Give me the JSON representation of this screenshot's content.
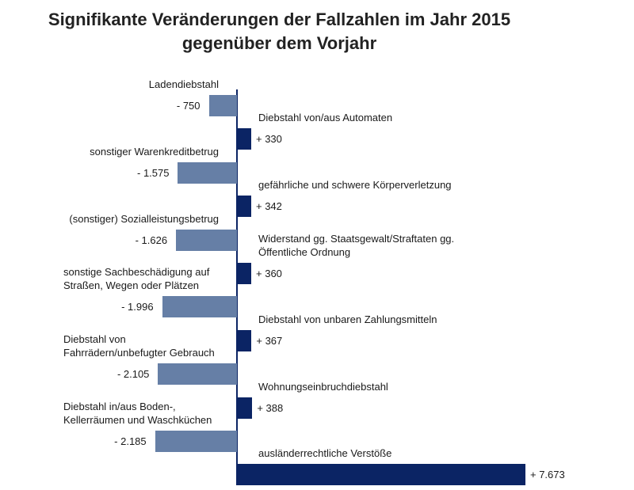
{
  "chart_data": {
    "type": "bar",
    "orientation": "horizontal",
    "title": [
      "Signifikante Veränderungen der Fallzahlen im Jahr 2015",
      "gegenüber dem Vorjahr"
    ],
    "colors": {
      "negative": "#667fa6",
      "positive": "#0b2464",
      "axis": "#0b2464"
    },
    "grid": false,
    "categories": [
      "Ladendiebstahl",
      "Diebstahl von/aus Automaten",
      "sonstiger Warenkreditbetrug",
      "gefährliche und schwere Körperverletzung",
      "(sonstiger) Sozialleistungsbetrug",
      "Widerstand gg. Staatsgewalt/Straftaten gg.\nÖffentliche Ordnung",
      "sonstige Sachbeschädigung auf\nStraßen, Wegen oder Plätzen",
      "Diebstahl von unbaren Zahlungsmitteln",
      "Diebstahl von\nFahrrädern/unbefugter Gebrauch",
      "Wohnungseinbruchdiebstahl",
      "Diebstahl in/aus Boden-,\nKellerräumen und Waschküchen",
      "ausländerrechtliche Verstöße"
    ],
    "values": [
      -750,
      330,
      -1575,
      342,
      -1626,
      360,
      -1996,
      367,
      -2105,
      388,
      -2185,
      7673
    ],
    "data_labels": [
      "- 750",
      "+ 330",
      "- 1.575",
      "+ 342",
      "- 1.626",
      "+ 360",
      "- 1.996",
      "+ 367",
      "- 2.105",
      "+ 388",
      "- 2.185",
      "+ 7.673"
    ]
  }
}
